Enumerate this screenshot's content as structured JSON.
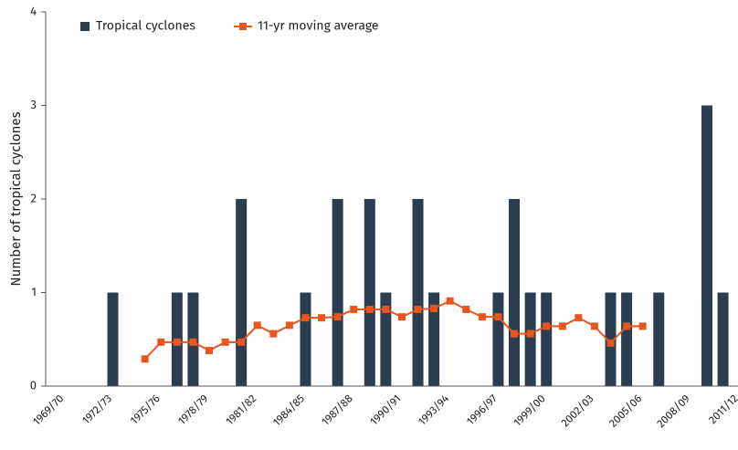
{
  "chart_data": {
    "type": "bar",
    "y_label": "Number of tropical cyclones",
    "categories": [
      "1969/70",
      null,
      null,
      "1972/73",
      null,
      null,
      "1975/76",
      null,
      null,
      "1978/79",
      null,
      null,
      "1981/82",
      null,
      null,
      "1984/85",
      null,
      null,
      "1987/88",
      null,
      null,
      "1990/91",
      null,
      null,
      "1993/94",
      null,
      null,
      "1996/97",
      null,
      null,
      "1999/00",
      null,
      null,
      "2002/03",
      null,
      null,
      "2005/06",
      null,
      null,
      "2008/09",
      null,
      null,
      "2011/12"
    ],
    "series": [
      {
        "name": "Tropical cyclones",
        "type": "bar",
        "color": "#2b3d4f",
        "values": [
          0,
          0,
          0,
          1,
          0,
          0,
          0,
          1,
          1,
          0,
          0,
          2,
          0,
          0,
          0,
          1,
          0,
          2,
          0,
          2,
          1,
          0,
          2,
          1,
          0,
          0,
          0,
          1,
          2,
          1,
          1,
          0,
          0,
          0,
          1,
          1,
          0,
          1,
          0,
          0,
          3,
          1,
          0
        ]
      },
      {
        "name": "11-yr moving average",
        "type": "line",
        "color": "#e8561f",
        "values": [
          null,
          null,
          null,
          null,
          null,
          0.29,
          0.47,
          0.47,
          0.47,
          0.38,
          0.47,
          0.47,
          0.65,
          0.56,
          0.65,
          0.73,
          0.73,
          0.74,
          0.82,
          0.82,
          0.82,
          0.74,
          0.82,
          0.83,
          0.91,
          0.82,
          0.74,
          0.74,
          0.56,
          0.56,
          0.64,
          0.64,
          0.73,
          0.64,
          0.46,
          0.64,
          0.64,
          null,
          null,
          null,
          null,
          null,
          null
        ]
      }
    ],
    "ylim": [
      0,
      4
    ],
    "yticks": [
      0,
      1,
      2,
      3,
      4
    ],
    "grid": false,
    "legend": "top-left"
  }
}
